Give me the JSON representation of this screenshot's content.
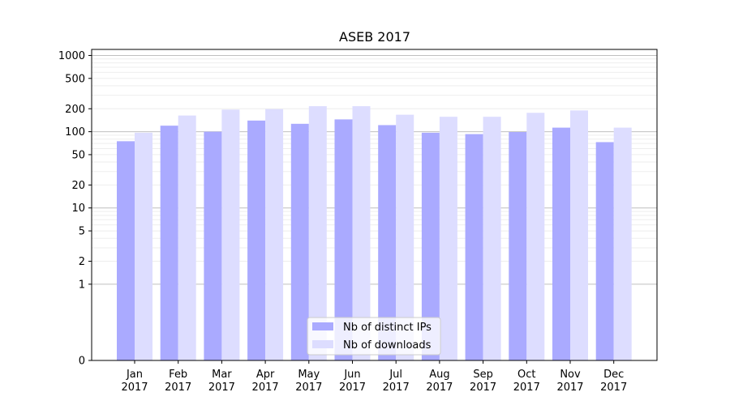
{
  "chart_data": {
    "type": "bar",
    "title": "ASEB 2017",
    "xlabel": "",
    "ylabel": "",
    "yscale": "symlog",
    "ylim": [
      0,
      1200
    ],
    "yticks": [
      0,
      1,
      2,
      5,
      10,
      20,
      50,
      100,
      200,
      500,
      1000
    ],
    "ytick_labels": [
      "0",
      "1",
      "2",
      "5",
      "10",
      "20",
      "50",
      "100",
      "200",
      "500",
      "1000"
    ],
    "grid": true,
    "legend_position": "bottom-center",
    "categories": [
      [
        "Jan",
        "2017"
      ],
      [
        "Feb",
        "2017"
      ],
      [
        "Mar",
        "2017"
      ],
      [
        "Apr",
        "2017"
      ],
      [
        "May",
        "2017"
      ],
      [
        "Jun",
        "2017"
      ],
      [
        "Jul",
        "2017"
      ],
      [
        "Aug",
        "2017"
      ],
      [
        "Sep",
        "2017"
      ],
      [
        "Oct",
        "2017"
      ],
      [
        "Nov",
        "2017"
      ],
      [
        "Dec",
        "2017"
      ]
    ],
    "series": [
      {
        "name": "Nb of distinct IPs",
        "color": "#aaaaff",
        "values": [
          75,
          120,
          100,
          140,
          127,
          145,
          122,
          97,
          93,
          99,
          113,
          73
        ]
      },
      {
        "name": "Nb of downloads",
        "color": "#ddddff",
        "values": [
          97,
          163,
          195,
          198,
          216,
          216,
          167,
          157,
          157,
          177,
          190,
          113
        ]
      }
    ]
  }
}
